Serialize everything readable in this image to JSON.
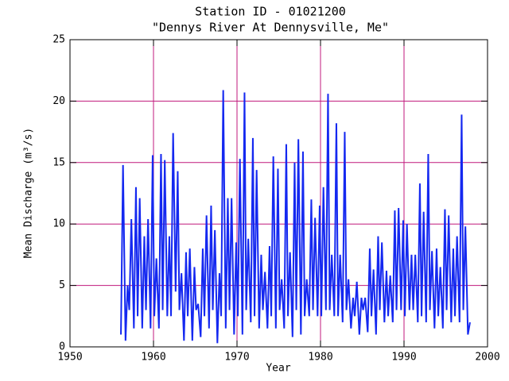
{
  "chart_data": {
    "type": "line",
    "title": "Station ID - 01021200",
    "subtitle": "\"Dennys River At Dennysville, Me\"",
    "x_label": "Year",
    "y_label": "Mean Discharge (m³/s)",
    "xlim": [
      1950,
      2000
    ],
    "xticks": [
      1950,
      1960,
      1970,
      1980,
      1990,
      2000
    ],
    "ylim": [
      0,
      25
    ],
    "yticks": [
      0,
      5,
      10,
      15,
      20,
      25
    ],
    "grid": true,
    "grid_color": "#c0187c",
    "x": [
      1956.1,
      1956.35,
      1956.65,
      1956.9,
      1957.1,
      1957.35,
      1957.65,
      1957.9,
      1958.1,
      1958.35,
      1958.65,
      1958.9,
      1959.1,
      1959.35,
      1959.65,
      1959.9,
      1960.1,
      1960.35,
      1960.65,
      1960.9,
      1961.1,
      1961.35,
      1961.65,
      1961.9,
      1962.1,
      1962.35,
      1962.65,
      1962.9,
      1963.1,
      1963.35,
      1963.65,
      1963.9,
      1964.1,
      1964.35,
      1964.65,
      1964.9,
      1965.1,
      1965.35,
      1965.65,
      1965.9,
      1966.1,
      1966.35,
      1966.65,
      1966.9,
      1967.1,
      1967.35,
      1967.65,
      1967.9,
      1968.1,
      1968.35,
      1968.65,
      1968.9,
      1969.1,
      1969.35,
      1969.65,
      1969.9,
      1970.1,
      1970.35,
      1970.65,
      1970.9,
      1971.1,
      1971.35,
      1971.65,
      1971.9,
      1972.1,
      1972.35,
      1972.65,
      1972.9,
      1973.1,
      1973.35,
      1973.65,
      1973.9,
      1974.1,
      1974.35,
      1974.65,
      1974.9,
      1975.1,
      1975.35,
      1975.65,
      1975.9,
      1976.1,
      1976.35,
      1976.65,
      1976.9,
      1977.1,
      1977.35,
      1977.65,
      1977.9,
      1978.1,
      1978.35,
      1978.65,
      1978.9,
      1979.1,
      1979.35,
      1979.65,
      1979.9,
      1980.1,
      1980.35,
      1980.65,
      1980.9,
      1981.1,
      1981.35,
      1981.65,
      1981.9,
      1982.1,
      1982.35,
      1982.65,
      1982.9,
      1983.1,
      1983.35,
      1983.65,
      1983.9,
      1984.1,
      1984.35,
      1984.65,
      1984.9,
      1985.1,
      1985.35,
      1985.65,
      1985.9,
      1986.1,
      1986.35,
      1986.65,
      1986.9,
      1987.1,
      1987.35,
      1987.65,
      1987.9,
      1988.1,
      1988.35,
      1988.65,
      1988.9,
      1989.1,
      1989.35,
      1989.65,
      1989.9,
      1990.1,
      1990.35,
      1990.65,
      1990.9,
      1991.1,
      1991.35,
      1991.65,
      1991.9,
      1992.1,
      1992.35,
      1992.65,
      1992.9,
      1993.1,
      1993.35,
      1993.65,
      1993.9,
      1994.1,
      1994.35,
      1994.65,
      1994.9,
      1995.1,
      1995.35,
      1995.65,
      1995.9,
      1996.1,
      1996.35,
      1996.65,
      1996.9,
      1997.1,
      1997.35,
      1997.65,
      1997.9
    ],
    "series": [
      {
        "name": "Mean Discharge",
        "color": "#1428f0",
        "values": [
          1.0,
          14.8,
          0.5,
          5,
          3,
          10.4,
          1.5,
          13,
          2.5,
          12.1,
          1.5,
          9,
          3,
          10.4,
          1.5,
          15.6,
          2.5,
          7.2,
          1.5,
          15.7,
          3,
          15.2,
          2.5,
          9,
          2.5,
          17.4,
          4.5,
          14.3,
          3,
          6,
          0.5,
          7.7,
          2.5,
          8,
          0.5,
          6.5,
          3,
          3.5,
          0.8,
          8,
          2.5,
          10.7,
          1.5,
          11.5,
          3,
          9.5,
          0.3,
          6,
          2.5,
          20.9,
          1.5,
          12.1,
          3,
          12.1,
          1,
          8.5,
          2.5,
          15.3,
          1,
          20.7,
          3,
          8.8,
          2,
          17,
          2.5,
          14.4,
          1.5,
          7.5,
          3,
          6.1,
          1.5,
          8.2,
          2.5,
          15.5,
          1.5,
          14.5,
          3,
          5.5,
          1.5,
          16.5,
          2.5,
          7.7,
          0.8,
          15,
          3,
          16.9,
          1,
          15.9,
          2.5,
          5.5,
          2.5,
          12,
          3,
          10.5,
          2.5,
          11.5,
          2.5,
          13,
          3,
          20.6,
          3,
          7.5,
          2.5,
          18.2,
          2.5,
          7.5,
          2,
          17.5,
          3,
          5.5,
          1.5,
          4,
          2.5,
          5.3,
          1,
          4,
          3,
          4,
          1.2,
          8,
          2.5,
          6.3,
          1,
          9,
          3,
          8.5,
          2,
          6.2,
          2.5,
          5.8,
          2,
          11.1,
          3,
          11.3,
          3,
          10.3,
          2.5,
          10,
          3,
          7.5,
          3,
          7.5,
          2,
          13.3,
          2.5,
          11,
          2,
          15.7,
          3,
          7.8,
          1.5,
          8,
          2.5,
          6.5,
          1.5,
          11.2,
          3,
          10.7,
          2,
          8,
          2.5,
          9,
          2,
          18.9,
          3,
          9.8,
          1,
          2
        ]
      }
    ]
  }
}
